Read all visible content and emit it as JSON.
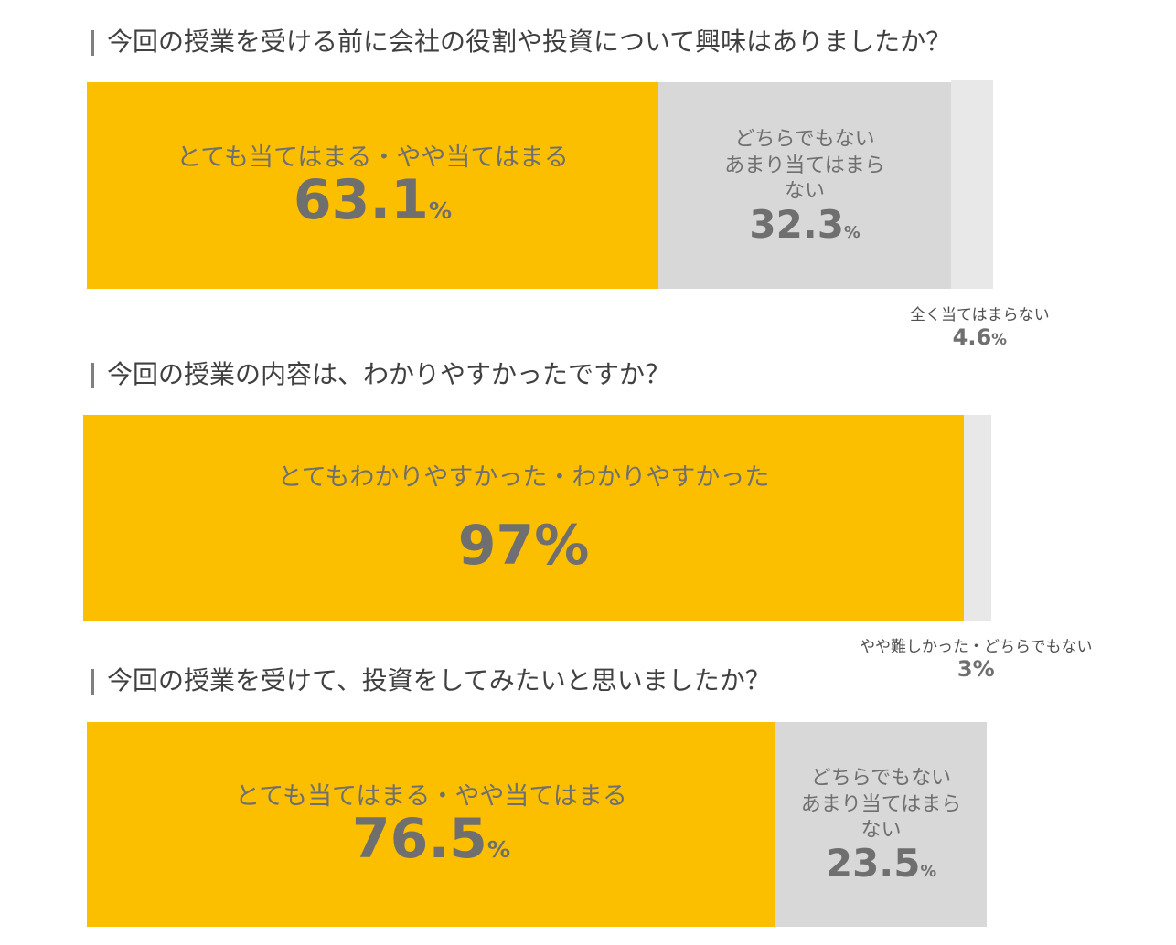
{
  "chart_data": [
    {
      "type": "bar",
      "title": "今回の授業を受ける前に会社の役割や投資について興味はありましたか？",
      "stacked": true,
      "unit": "%",
      "segments": [
        {
          "label": "とても当てはまる・やや当てはまる",
          "value": 63.1,
          "color": "#fcbf00"
        },
        {
          "label": "どちらでもない\nあまり当てはまら\nない",
          "value": 32.3,
          "color": "#d8d8d8"
        },
        {
          "label": "全く当てはまらない",
          "value": 4.6,
          "color": "#e8e8e8"
        }
      ]
    },
    {
      "type": "bar",
      "title": "今回の授業の内容は、わかりやすかったですか？",
      "stacked": true,
      "unit": "%",
      "segments": [
        {
          "label": "とてもわかりやすかった・わかりやすかった",
          "value": 97,
          "color": "#fcbf00"
        },
        {
          "label": "やや難しかった・どちらでもない",
          "value": 3,
          "color": "#e8e8e8"
        }
      ]
    },
    {
      "type": "bar",
      "title": "今回の授業を受けて、投資をしてみたいと思いましたか？",
      "stacked": true,
      "unit": "%",
      "segments": [
        {
          "label": "とても当てはまる・やや当てはまる",
          "value": 76.5,
          "color": "#fcbf00"
        },
        {
          "label": "どちらでもない\nあまり当てはまら\nない",
          "value": 23.5,
          "color": "#d8d8d8"
        }
      ]
    }
  ],
  "display": {
    "q1": {
      "pct1": "63.1",
      "pct2": "32.3",
      "pct3": "4.6",
      "unit": "%"
    },
    "q2": {
      "pct1": "97",
      "pct2": "3",
      "unit": "%"
    },
    "q3": {
      "pct1": "76.5",
      "pct2": "23.5",
      "unit": "%"
    }
  }
}
